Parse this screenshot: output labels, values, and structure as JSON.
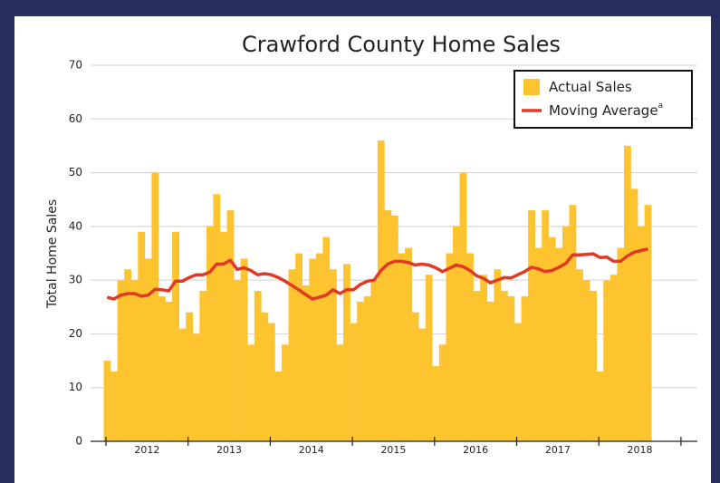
{
  "chart_data": {
    "type": "bar_line",
    "title": "Crawford County Home Sales",
    "y_label": "Total Home Sales",
    "years": [
      "2012",
      "2013",
      "2014",
      "2015",
      "2016",
      "2017",
      "2018"
    ],
    "footnote_mark": "a",
    "series": [
      {
        "name": "Actual Sales",
        "kind": "bar",
        "color": "#fdc42f",
        "values": [
          15,
          13,
          30,
          32,
          30,
          39,
          34,
          50,
          27,
          26,
          39,
          21,
          24,
          20,
          28,
          40,
          46,
          39,
          43,
          30,
          34,
          18,
          28,
          24,
          22,
          13,
          18,
          32,
          35,
          29,
          34,
          35,
          38,
          32,
          18,
          33,
          22,
          26,
          27,
          30,
          56,
          43,
          42,
          35,
          36,
          24,
          21,
          31,
          14,
          18,
          35,
          40,
          50,
          35,
          28,
          31,
          26,
          32,
          28,
          27,
          22,
          27,
          43,
          36,
          43,
          38,
          36,
          40,
          44,
          32,
          30,
          28,
          13,
          30,
          31,
          36,
          55,
          47,
          40,
          44
        ]
      },
      {
        "name": "Moving Average",
        "kind": "line",
        "color": "#e03a25",
        "values": [
          26.8,
          26.5,
          27.2,
          27.5,
          27.5,
          27,
          27.2,
          28.3,
          28.2,
          28,
          29.8,
          29.8,
          30.5,
          31,
          31,
          31.5,
          33,
          33,
          33.7,
          32,
          32.3,
          31.8,
          31,
          31.2,
          31,
          30.5,
          29.8,
          29,
          28.2,
          27.3,
          26.5,
          26.8,
          27.2,
          28.2,
          27.5,
          28.2,
          28.2,
          29.2,
          29.8,
          30,
          31.8,
          33,
          33.5,
          33.5,
          33.3,
          32.8,
          33,
          32.8,
          32.3,
          31.6,
          32.2,
          32.8,
          32.5,
          31.8,
          30.8,
          30.3,
          29.5,
          30,
          30.5,
          30.4,
          31,
          31.6,
          32.4,
          32.1,
          31.6,
          31.8,
          32.4,
          33.1,
          34.7,
          34.7,
          34.8,
          34.9,
          34.2,
          34.3,
          33.5,
          33.5,
          34.5,
          35.2,
          35.5,
          35.8
        ]
      }
    ],
    "ylim": [
      0,
      70
    ],
    "yticks": [
      0,
      10,
      20,
      30,
      40,
      50,
      60,
      70
    ],
    "grid": true,
    "legend": "upper right"
  }
}
